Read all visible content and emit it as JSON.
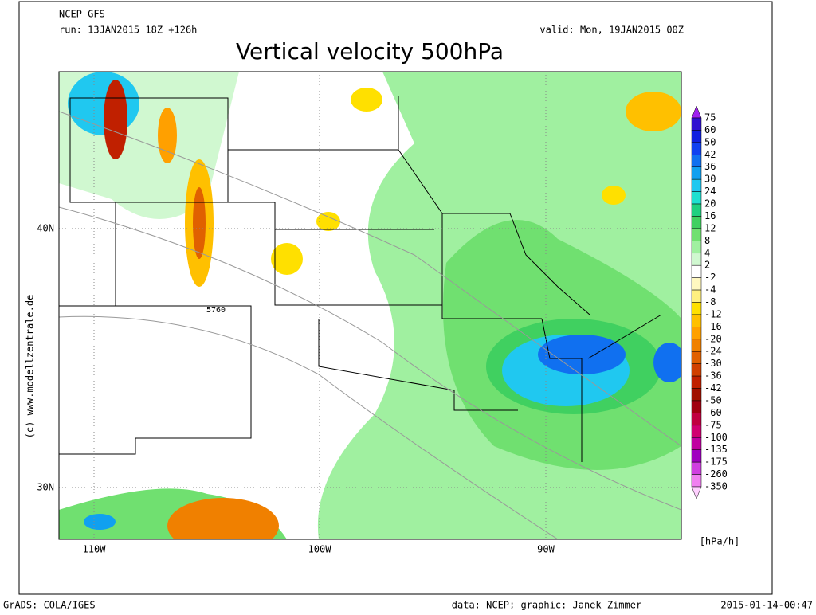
{
  "header": {
    "model": "NCEP GFS",
    "run": "run: 13JAN2015 18Z +126h",
    "valid": "valid: Mon, 19JAN2015 00Z",
    "title": "Vertical velocity 500hPa"
  },
  "map": {
    "lat_labels": [
      "40N",
      "30N"
    ],
    "lon_labels": [
      "110W",
      "100W",
      "90W"
    ],
    "contour_label": "5760",
    "watermark": "(c) www.modellzentrale.de"
  },
  "legend": {
    "levels": [
      75,
      60,
      50,
      42,
      36,
      30,
      24,
      20,
      16,
      12,
      8,
      4,
      2,
      -2,
      -4,
      -8,
      -12,
      -16,
      -20,
      -24,
      -30,
      -36,
      -42,
      -50,
      -60,
      -75,
      -100,
      -135,
      -175,
      -260,
      -350
    ],
    "colors": [
      "#a020f0",
      "#3010d0",
      "#1020e0",
      "#1040f0",
      "#1070f0",
      "#10a0f0",
      "#20c8f0",
      "#20e0d0",
      "#20d080",
      "#40d060",
      "#70e070",
      "#a0f0a0",
      "#d0f8d0",
      "#ffffff",
      "#fff8c0",
      "#fff080",
      "#ffe000",
      "#ffc000",
      "#ffa000",
      "#f08000",
      "#e06000",
      "#d04000",
      "#c02000",
      "#a01000",
      "#a00010",
      "#c00040",
      "#d00070",
      "#c000a0",
      "#a000c0",
      "#d040e0",
      "#f080f0",
      "#ffd0ff"
    ],
    "unit": "[hPa/h]"
  },
  "footer": {
    "left": "GrADS: COLA/IGES",
    "center": "data: NCEP; graphic: Janek Zimmer",
    "right": "2015-01-14-00:47"
  }
}
